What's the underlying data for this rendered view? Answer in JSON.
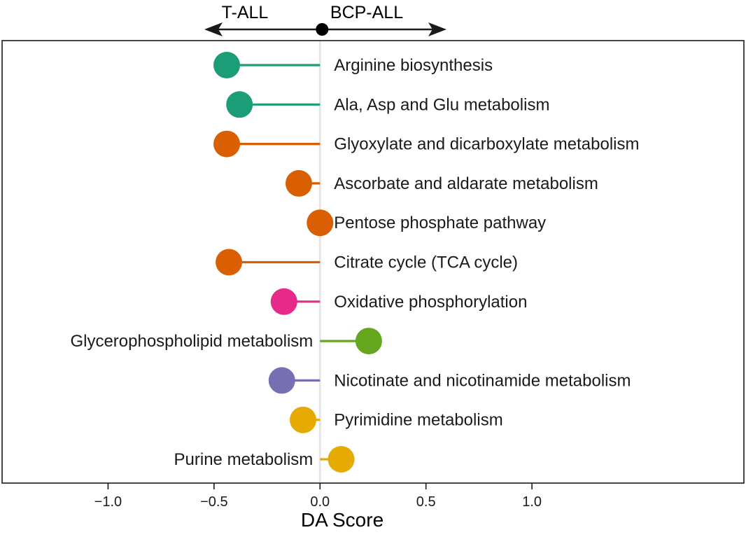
{
  "chart_data": {
    "type": "lollipop",
    "xlabel": "DA Score",
    "xlim": [
      -1.5,
      2.0
    ],
    "xticks": [
      -1.0,
      -0.5,
      0.0,
      0.5,
      1.0
    ],
    "xtick_labels": [
      "−1.0",
      "−0.5",
      "0.0",
      "0.5",
      "1.0"
    ],
    "grid": false,
    "direction_labels": {
      "left": "T-ALL",
      "right": "BCP-ALL"
    },
    "points": [
      {
        "label": "Arginine biosynthesis",
        "value": -0.44,
        "color": "#1b9e77"
      },
      {
        "label": "Ala, Asp and Glu metabolism",
        "value": -0.38,
        "color": "#1b9e77"
      },
      {
        "label": "Glyoxylate and dicarboxylate metabolism",
        "value": -0.44,
        "color": "#d95f02"
      },
      {
        "label": "Ascorbate and aldarate metabolism",
        "value": -0.1,
        "color": "#d95f02"
      },
      {
        "label": "Pentose phosphate pathway",
        "value": 0.0,
        "color": "#d95f02"
      },
      {
        "label": "Citrate cycle (TCA cycle)",
        "value": -0.43,
        "color": "#d95f02"
      },
      {
        "label": "Oxidative phosphorylation",
        "value": -0.17,
        "color": "#e7298a"
      },
      {
        "label": "Glycerophospholipid metabolism",
        "value": 0.23,
        "color": "#66a61e"
      },
      {
        "label": "Nicotinate and nicotinamide metabolism",
        "value": -0.18,
        "color": "#7570b3"
      },
      {
        "label": "Pyrimidine metabolism",
        "value": -0.08,
        "color": "#e6ab02"
      },
      {
        "label": "Purine metabolism",
        "value": 0.1,
        "color": "#e6ab02"
      }
    ]
  }
}
